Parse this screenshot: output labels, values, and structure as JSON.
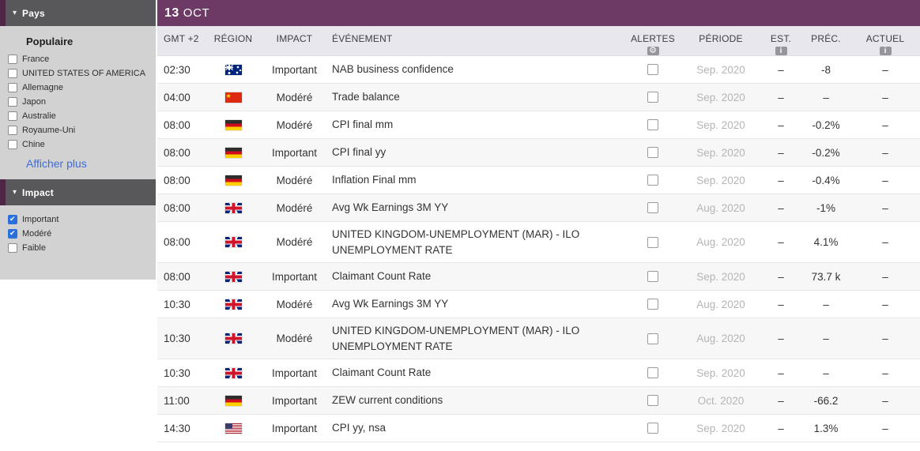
{
  "sidebar": {
    "pays": {
      "title": "Pays",
      "group_label": "Populaire",
      "items": [
        {
          "label": "France"
        },
        {
          "label": "UNITED STATES OF AMERICA"
        },
        {
          "label": "Allemagne"
        },
        {
          "label": "Japon"
        },
        {
          "label": "Australie"
        },
        {
          "label": "Royaume-Uni"
        },
        {
          "label": "Chine"
        }
      ],
      "show_more_label": "Afficher plus"
    },
    "impact": {
      "title": "Impact",
      "items": [
        {
          "label": "Important",
          "checked": true
        },
        {
          "label": "Modéré",
          "checked": true
        },
        {
          "label": "Faible"
        }
      ]
    }
  },
  "main": {
    "date": {
      "day": "13",
      "month": "OCT"
    },
    "columns": {
      "time": "GMT +2",
      "region": "RÉGION",
      "impact": "IMPACT",
      "event": "ÉVÉNEMENT",
      "alerts": "ALERTES",
      "period": "PÉRIODE",
      "est": "EST.",
      "prev": "PRÉC.",
      "actual": "ACTUEL"
    },
    "rows": [
      {
        "time": "02:30",
        "flag": "au",
        "impact": "Important",
        "event": "NAB business confidence",
        "period": "Sep. 2020",
        "est": "–",
        "prev": "-8",
        "actual": "–"
      },
      {
        "time": "04:00",
        "flag": "cn",
        "impact": "Modéré",
        "event": "Trade balance",
        "period": "Sep. 2020",
        "est": "–",
        "prev": "–",
        "actual": "–"
      },
      {
        "time": "08:00",
        "flag": "de",
        "impact": "Modéré",
        "event": "CPI final mm",
        "period": "Sep. 2020",
        "est": "–",
        "prev": "-0.2%",
        "actual": "–"
      },
      {
        "time": "08:00",
        "flag": "de",
        "impact": "Important",
        "event": "CPI final yy",
        "period": "Sep. 2020",
        "est": "–",
        "prev": "-0.2%",
        "actual": "–"
      },
      {
        "time": "08:00",
        "flag": "de",
        "impact": "Modéré",
        "event": "Inflation Final mm",
        "period": "Sep. 2020",
        "est": "–",
        "prev": "-0.4%",
        "actual": "–"
      },
      {
        "time": "08:00",
        "flag": "gb",
        "impact": "Modéré",
        "event": "Avg Wk Earnings 3M YY",
        "period": "Aug. 2020",
        "est": "–",
        "prev": "-1%",
        "actual": "–"
      },
      {
        "time": "08:00",
        "flag": "gb",
        "impact": "Modéré",
        "event": "UNITED KINGDOM-UNEMPLOYMENT (MAR) - ILO UNEMPLOYMENT RATE",
        "period": "Aug. 2020",
        "est": "–",
        "prev": "4.1%",
        "actual": "–"
      },
      {
        "time": "08:00",
        "flag": "gb",
        "impact": "Important",
        "event": "Claimant Count Rate",
        "period": "Sep. 2020",
        "est": "–",
        "prev": "73.7 k",
        "actual": "–"
      },
      {
        "time": "10:30",
        "flag": "gb",
        "impact": "Modéré",
        "event": "Avg Wk Earnings 3M YY",
        "period": "Aug. 2020",
        "est": "–",
        "prev": "–",
        "actual": "–"
      },
      {
        "time": "10:30",
        "flag": "gb",
        "impact": "Modéré",
        "event": "UNITED KINGDOM-UNEMPLOYMENT (MAR) - ILO UNEMPLOYMENT RATE",
        "period": "Aug. 2020",
        "est": "–",
        "prev": "–",
        "actual": "–"
      },
      {
        "time": "10:30",
        "flag": "gb",
        "impact": "Important",
        "event": "Claimant Count Rate",
        "period": "Sep. 2020",
        "est": "–",
        "prev": "–",
        "actual": "–"
      },
      {
        "time": "11:00",
        "flag": "de",
        "impact": "Important",
        "event": "ZEW current conditions",
        "period": "Oct. 2020",
        "est": "–",
        "prev": "-66.2",
        "actual": "–"
      },
      {
        "time": "14:30",
        "flag": "us",
        "impact": "Important",
        "event": "CPI yy, nsa",
        "period": "Sep. 2020",
        "est": "–",
        "prev": "1.3%",
        "actual": "–"
      }
    ]
  },
  "colors": {
    "brand_purple": "#6c3a64",
    "sidebar_header_gray": "#58585a",
    "sidebar_accent_purple": "#4e2646",
    "link_blue": "#3e6dd8",
    "checkbox_checked_blue": "#2a6fdb",
    "period_text_gray": "#b5b5b5",
    "table_header_bg": "#e9e7ee"
  }
}
